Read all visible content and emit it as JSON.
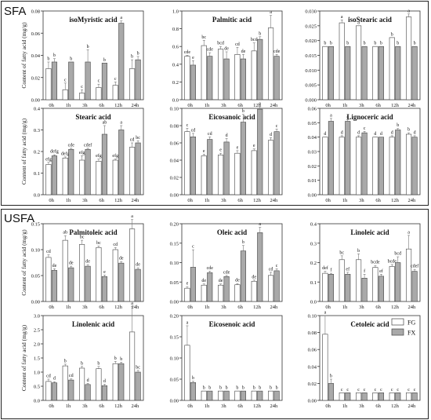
{
  "sections": {
    "sfa": "SFA",
    "usfa": "USFA"
  },
  "ylabel": "Content of fatty acid (mg/g)",
  "legend": {
    "items": [
      {
        "name": "FG",
        "color": "#ffffff"
      },
      {
        "name": "FX",
        "color": "#a9a9a9"
      }
    ],
    "placement": "inside Cetoleic acid panel, top-right"
  },
  "chart_data": [
    {
      "type": "bar",
      "title": "isoMyristic acid",
      "categories": [
        "0h",
        "1h",
        "3h",
        "6h",
        "12h",
        "24h"
      ],
      "ylim": [
        0,
        0.08
      ],
      "ticks": [
        "0.00",
        "0.02",
        "0.04",
        "0.06",
        "0.08"
      ],
      "series": [
        {
          "name": "FG",
          "values": [
            0.028,
            0.009,
            0.006,
            0.011,
            0.013,
            0.028
          ],
          "errors": [
            0.006,
            0.006,
            0.003,
            0.003,
            0.003,
            0.008
          ],
          "letters": [
            "b",
            "c",
            "c",
            "c",
            "c",
            "b"
          ]
        },
        {
          "name": "FX",
          "values": [
            0.034,
            0.034,
            0.034,
            0.033,
            0.069,
            0.036
          ],
          "errors": [
            0.003,
            0.0,
            0.011,
            0.0,
            0.002,
            0.003
          ],
          "letters": [
            "b",
            "b",
            "b",
            "b",
            "a",
            "b"
          ]
        }
      ]
    },
    {
      "type": "bar",
      "title": "Palmitic acid",
      "categories": [
        "0h",
        "1h",
        "3h",
        "6h",
        "12h",
        "24h"
      ],
      "ylim": [
        0,
        1.0
      ],
      "ticks": [
        "0.0",
        "0.2",
        "0.4",
        "0.6",
        "0.8",
        "1.0"
      ],
      "series": [
        {
          "name": "FG",
          "values": [
            0.49,
            0.61,
            0.57,
            0.51,
            0.55,
            0.81
          ],
          "errors": [
            0.01,
            0.06,
            0.03,
            0.08,
            0.09,
            0.14
          ],
          "letters": [
            "cde",
            "bc",
            "bcd",
            "cd",
            "bcd",
            "a"
          ]
        },
        {
          "name": "FX",
          "values": [
            0.39,
            0.49,
            0.46,
            0.46,
            0.68,
            0.49
          ],
          "errors": [
            0.05,
            0.04,
            0.08,
            0.05,
            0.03,
            0.02
          ],
          "letters": [
            "e",
            "cde",
            "de",
            "de",
            "b",
            "cde"
          ]
        }
      ]
    },
    {
      "type": "bar",
      "title": "isoStearic acid",
      "categories": [
        "0h",
        "1h",
        "3h",
        "6h",
        "12h",
        "24h"
      ],
      "ylim": [
        0,
        0.03
      ],
      "ticks": [
        "0.000",
        "0.005",
        "0.010",
        "0.015",
        "0.020",
        "0.025",
        "0.030"
      ],
      "series": [
        {
          "name": "FG",
          "values": [
            0.018,
            0.026,
            0.025,
            0.018,
            0.021,
            0.028
          ],
          "errors": [
            0.0,
            0.001,
            0.0,
            0.0,
            0.0,
            0.001
          ],
          "letters": [
            "b",
            "a",
            "a",
            "b",
            "b",
            "a"
          ]
        },
        {
          "name": "FX",
          "values": [
            0.018,
            0.018,
            0.018,
            0.018,
            0.018,
            0.018
          ],
          "errors": [
            0.0,
            0.0,
            0.0,
            0.0,
            0.0,
            0.0
          ],
          "letters": [
            "b",
            "b",
            "b",
            "b",
            "b",
            "b"
          ]
        }
      ]
    },
    {
      "type": "bar",
      "title": "Stearic acid",
      "categories": [
        "0h",
        "1h",
        "3h",
        "6h",
        "12h",
        "24h"
      ],
      "ylim": [
        0,
        0.4
      ],
      "ticks": [
        "0.0",
        "0.1",
        "0.2",
        "0.3",
        "0.4"
      ],
      "series": [
        {
          "name": "FG",
          "values": [
            0.14,
            0.17,
            0.16,
            0.155,
            0.16,
            0.22
          ],
          "errors": [
            0.01,
            0.005,
            0.02,
            0.01,
            0.005,
            0.02
          ],
          "letters": [
            "efg",
            "defg",
            "efg",
            "efg",
            "efg",
            "cd"
          ]
        },
        {
          "name": "FX",
          "values": [
            0.18,
            0.21,
            0.21,
            0.28,
            0.3,
            0.24
          ],
          "errors": [
            0.005,
            0.005,
            0.005,
            0.04,
            0.02,
            0.01
          ],
          "letters": [
            "defg",
            "cde",
            "cdef",
            "ab",
            "a",
            "bc"
          ]
        }
      ]
    },
    {
      "type": "bar",
      "title": "Eicosanoic acid",
      "categories": [
        "0h",
        "1h",
        "3h",
        "6h",
        "12h",
        "24h"
      ],
      "ylim": [
        0,
        0.1
      ],
      "ticks": [
        "0.00",
        "0.02",
        "0.04",
        "0.06",
        "0.08",
        "0.10"
      ],
      "series": [
        {
          "name": "FG",
          "values": [
            0.073,
            0.045,
            0.046,
            0.048,
            0.051,
            0.063
          ],
          "errors": [
            0.004,
            0.002,
            0.002,
            0.003,
            0.002,
            0.003
          ],
          "letters": [
            "c",
            "e",
            "e",
            "e",
            "e",
            "d"
          ]
        },
        {
          "name": "FX",
          "values": [
            0.067,
            0.064,
            0.061,
            0.084,
            0.099,
            0.073
          ],
          "errors": [
            0.004,
            0.003,
            0.004,
            0.009,
            0.003,
            0.003
          ],
          "letters": [
            "cd",
            "cd",
            "d",
            "b",
            "a",
            "c"
          ]
        }
      ]
    },
    {
      "type": "bar",
      "title": "Lignoceric acid",
      "categories": [
        "0h",
        "1h",
        "3h",
        "6h",
        "12h",
        "24h"
      ],
      "ylim": [
        0,
        0.06
      ],
      "ticks": [
        "0.00",
        "0.01",
        "0.02",
        "0.03",
        "0.04",
        "0.05",
        "0.06"
      ],
      "series": [
        {
          "name": "FG",
          "values": [
            0.04,
            0.04,
            0.04,
            0.04,
            0.04,
            0.042
          ],
          "errors": [
            0.0,
            0.001,
            0.001,
            0.0,
            0.001,
            0.001
          ],
          "letters": [
            "d",
            "d",
            "d",
            "d",
            "d",
            "b"
          ]
        },
        {
          "name": "FX",
          "values": [
            0.051,
            0.051,
            0.043,
            0.04,
            0.045,
            0.04
          ],
          "errors": [
            0.002,
            0.001,
            0.001,
            0.0,
            0.001,
            0.001
          ],
          "letters": [
            "a",
            "a",
            "c",
            "d",
            "b",
            "d"
          ]
        }
      ]
    },
    {
      "type": "bar",
      "title": "Palmitoleic acid",
      "categories": [
        "0h",
        "1h",
        "3h",
        "6h",
        "12h",
        "24h"
      ],
      "ylim": [
        0,
        0.15
      ],
      "ticks": [
        "0.00",
        "0.05",
        "0.10",
        "0.15"
      ],
      "series": [
        {
          "name": "FG",
          "values": [
            0.085,
            0.118,
            0.11,
            0.104,
            0.1,
            0.14
          ],
          "errors": [
            0.005,
            0.009,
            0.008,
            0.003,
            0.004,
            0.018
          ],
          "letters": [
            "cd",
            "ab",
            "bc",
            "bc",
            "cd",
            "a"
          ]
        },
        {
          "name": "FX",
          "values": [
            0.06,
            0.065,
            0.068,
            0.048,
            0.074,
            0.062
          ],
          "errors": [
            0.003,
            0.003,
            0.003,
            0.003,
            0.003,
            0.003
          ],
          "letters": [
            "de",
            "de",
            "de",
            "e",
            "de",
            "de"
          ]
        }
      ]
    },
    {
      "type": "bar",
      "title": "Oleic acid",
      "categories": [
        "0h",
        "1h",
        "3h",
        "6h",
        "12h",
        "24h"
      ],
      "ylim": [
        0,
        0.2
      ],
      "ticks": [
        "0.00",
        "0.05",
        "0.10",
        "0.15",
        "0.20"
      ],
      "series": [
        {
          "name": "FG",
          "values": [
            0.034,
            0.042,
            0.042,
            0.043,
            0.052,
            0.067
          ],
          "errors": [
            0.004,
            0.003,
            0.003,
            0.003,
            0.003,
            0.008
          ],
          "letters": [
            "e",
            "de",
            "de",
            "de",
            "de",
            "cd"
          ]
        },
        {
          "name": "FX",
          "values": [
            0.088,
            0.074,
            0.064,
            0.13,
            0.177,
            0.079
          ],
          "errors": [
            0.045,
            0.004,
            0.003,
            0.014,
            0.014,
            0.005
          ],
          "letters": [
            "c",
            "cde",
            "cde",
            "b",
            "a",
            "c"
          ]
        }
      ]
    },
    {
      "type": "bar",
      "title": "Linoleic acid",
      "categories": [
        "0h",
        "1h",
        "3h",
        "6h",
        "12h",
        "24h"
      ],
      "ylim": [
        0,
        0.4
      ],
      "ticks": [
        "0.0",
        "0.1",
        "0.2",
        "0.3",
        "0.4"
      ],
      "series": [
        {
          "name": "FG",
          "values": [
            0.145,
            0.215,
            0.215,
            0.175,
            0.18,
            0.27
          ],
          "errors": [
            0.01,
            0.02,
            0.03,
            0.01,
            0.01,
            0.07
          ],
          "letters": [
            "def",
            "bc",
            "b",
            "bcde",
            "bcde",
            "a"
          ]
        },
        {
          "name": "FX",
          "values": [
            0.14,
            0.14,
            0.12,
            0.13,
            0.2,
            0.155
          ],
          "errors": [
            0.005,
            0.01,
            0.02,
            0.01,
            0.03,
            0.01
          ],
          "letters": [
            "f",
            "ef",
            "f",
            "ef",
            "bcd",
            "cdef"
          ]
        }
      ]
    },
    {
      "type": "bar",
      "title": "Linolenic acid",
      "categories": [
        "0h",
        "1h",
        "3h",
        "6h",
        "12h",
        "24h"
      ],
      "ylim": [
        0,
        3.0
      ],
      "ticks": [
        "0.0",
        "0.5",
        "1.0",
        "1.5",
        "2.0",
        "2.5",
        "3.0"
      ],
      "series": [
        {
          "name": "FG",
          "values": [
            0.67,
            1.22,
            1.14,
            1.12,
            1.3,
            2.42
          ],
          "errors": [
            0.08,
            0.06,
            0.06,
            0.08,
            0.08,
            0.9
          ],
          "letters": [
            "cd",
            "b",
            "b",
            "b",
            "b",
            "a"
          ]
        },
        {
          "name": "FX",
          "values": [
            0.62,
            0.72,
            0.56,
            0.52,
            1.3,
            1.0
          ],
          "errors": [
            0.04,
            0.04,
            0.04,
            0.05,
            0.05,
            0.06
          ],
          "letters": [
            "d",
            "cd",
            "d",
            "d",
            "b",
            "bc"
          ]
        }
      ]
    },
    {
      "type": "bar",
      "title": "Eicosenoic acid",
      "categories": [
        "0h",
        "1h",
        "3h",
        "6h",
        "12h",
        "24h"
      ],
      "ylim": [
        0,
        0.2
      ],
      "ticks": [
        "0.00",
        "0.05",
        "0.10",
        "0.15",
        "0.20"
      ],
      "series": [
        {
          "name": "FG",
          "values": [
            0.13,
            0.022,
            0.022,
            0.022,
            0.022,
            0.022
          ],
          "errors": [
            0.046,
            0.0,
            0.0,
            0.0,
            0.0,
            0.0
          ],
          "letters": [
            "a",
            "b",
            "b",
            "b",
            "b",
            "b"
          ]
        },
        {
          "name": "FX",
          "values": [
            0.042,
            0.022,
            0.022,
            0.022,
            0.022,
            0.022
          ],
          "errors": [
            0.003,
            0.0,
            0.0,
            0.0,
            0.0,
            0.0
          ],
          "letters": [
            "b",
            "b",
            "b",
            "b",
            "b",
            "b"
          ]
        }
      ]
    },
    {
      "type": "bar",
      "title": "Cetoleic acid",
      "categories": [
        "0h",
        "1h",
        "3h",
        "6h",
        "12h",
        "24h"
      ],
      "ylim": [
        0,
        0.1
      ],
      "ticks": [
        "0.00",
        "0.02",
        "0.04",
        "0.06",
        "0.08",
        "0.10"
      ],
      "series": [
        {
          "name": "FG",
          "values": [
            0.078,
            0.009,
            0.009,
            0.009,
            0.009,
            0.009
          ],
          "errors": [
            0.022,
            0.0,
            0.0,
            0.0,
            0.0,
            0.0
          ],
          "letters": [
            "a",
            "c",
            "c",
            "c",
            "c",
            "c"
          ]
        },
        {
          "name": "FX",
          "values": [
            0.02,
            0.009,
            0.009,
            0.009,
            0.009,
            0.009
          ],
          "errors": [
            0.005,
            0.0,
            0.0,
            0.0,
            0.0,
            0.0
          ],
          "letters": [
            "b",
            "c",
            "c",
            "c",
            "c",
            "c"
          ]
        }
      ]
    }
  ]
}
